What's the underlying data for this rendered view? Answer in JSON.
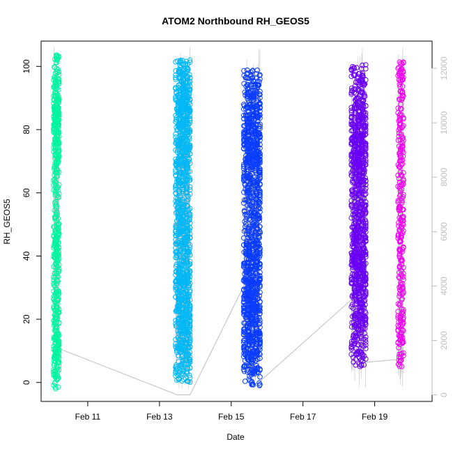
{
  "chart_data": {
    "type": "scatter",
    "title": "ATOM2 Northbound RH_GEOS5",
    "xlabel": "Date",
    "ylabel": "RH_GEOS5",
    "x_ticks": [
      {
        "label": "Feb 11",
        "day": 11
      },
      {
        "label": "Feb 13",
        "day": 13
      },
      {
        "label": "Feb 15",
        "day": 15
      },
      {
        "label": "Feb 17",
        "day": 17
      },
      {
        "label": "Feb 19",
        "day": 19
      }
    ],
    "x_range_days": [
      9.7,
      20.6
    ],
    "y_left": {
      "ylim": [
        -6,
        108
      ],
      "ticks": [
        0,
        20,
        40,
        60,
        80,
        100
      ]
    },
    "y_right": {
      "ylim": [
        -240,
        13000
      ],
      "ticks": [
        0,
        2000,
        4000,
        6000,
        8000,
        10000,
        12000
      ],
      "color": "#bebebe"
    },
    "grid": false,
    "legend": "none",
    "series": [
      {
        "color": "#00f5a0",
        "x_range": [
          10.05,
          10.2
        ],
        "y_range": [
          -2,
          104
        ],
        "density": [
          3,
          4,
          8,
          6,
          3,
          5,
          4,
          3,
          3,
          5,
          6,
          5,
          3,
          2,
          2,
          3,
          4,
          5,
          6,
          8,
          9,
          6,
          4,
          3,
          3
        ],
        "altitude_trace": [
          [
            10.05,
            1200
          ],
          [
            10.1,
            9000
          ],
          [
            10.15,
            4000
          ],
          [
            10.2,
            1700
          ]
        ]
      },
      {
        "color": "#00b8f5",
        "x_range": [
          13.45,
          13.85
        ],
        "y_range": [
          0,
          102
        ],
        "density": [
          3,
          4,
          5,
          5,
          6,
          6,
          5,
          6,
          5,
          4,
          5,
          6,
          5,
          4,
          3,
          4,
          5,
          5,
          6,
          5,
          6,
          7,
          7,
          5,
          4
        ],
        "altitude_trace": [
          [
            13.5,
            0
          ],
          [
            13.55,
            11000
          ],
          [
            13.7,
            7000
          ],
          [
            13.8,
            12500
          ],
          [
            13.85,
            0
          ]
        ]
      },
      {
        "color": "#0a3cff",
        "x_range": [
          15.35,
          15.8
        ],
        "y_range": [
          -1,
          99
        ],
        "density": [
          2,
          4,
          6,
          6,
          6,
          7,
          7,
          7,
          6,
          6,
          6,
          5,
          4,
          4,
          4,
          5,
          6,
          6,
          7,
          7,
          6,
          6,
          5,
          4,
          3
        ],
        "altitude_trace": [
          [
            15.35,
            4000
          ],
          [
            15.45,
            11500
          ],
          [
            15.6,
            6000
          ],
          [
            15.75,
            12000
          ],
          [
            15.8,
            500
          ]
        ]
      },
      {
        "color": "#6a00f5",
        "x_range": [
          18.35,
          18.75
        ],
        "y_range": [
          5,
          101
        ],
        "density": [
          2,
          3,
          3,
          4,
          4,
          4,
          5,
          6,
          6,
          6,
          6,
          5,
          4,
          4,
          4,
          5,
          6,
          7,
          7,
          6,
          5,
          4,
          3,
          3,
          2
        ],
        "altitude_trace": [
          [
            18.35,
            3500
          ],
          [
            18.45,
            11000
          ],
          [
            18.55,
            5000
          ],
          [
            18.65,
            12000
          ],
          [
            18.75,
            1200
          ]
        ]
      },
      {
        "color": "#f000f0",
        "x_range": [
          19.65,
          19.8
        ],
        "y_range": [
          5,
          102
        ],
        "density": [
          2,
          2,
          3,
          3,
          2,
          2,
          2,
          2,
          2,
          2,
          3,
          3,
          3,
          2,
          2,
          2,
          2,
          3,
          2,
          2,
          2,
          2,
          2,
          3,
          3
        ],
        "altitude_trace": [
          [
            19.65,
            1300
          ],
          [
            19.7,
            12000
          ],
          [
            19.75,
            500
          ],
          [
            19.8,
            1300
          ]
        ]
      }
    ],
    "altitude_connectors": [
      [
        10.2,
        1700
      ],
      [
        13.5,
        0
      ],
      [
        13.85,
        0
      ],
      [
        15.35,
        4000
      ],
      [
        15.8,
        500
      ],
      [
        18.35,
        3500
      ],
      [
        18.75,
        1200
      ],
      [
        19.65,
        1300
      ],
      [
        19.8,
        1300
      ]
    ]
  }
}
